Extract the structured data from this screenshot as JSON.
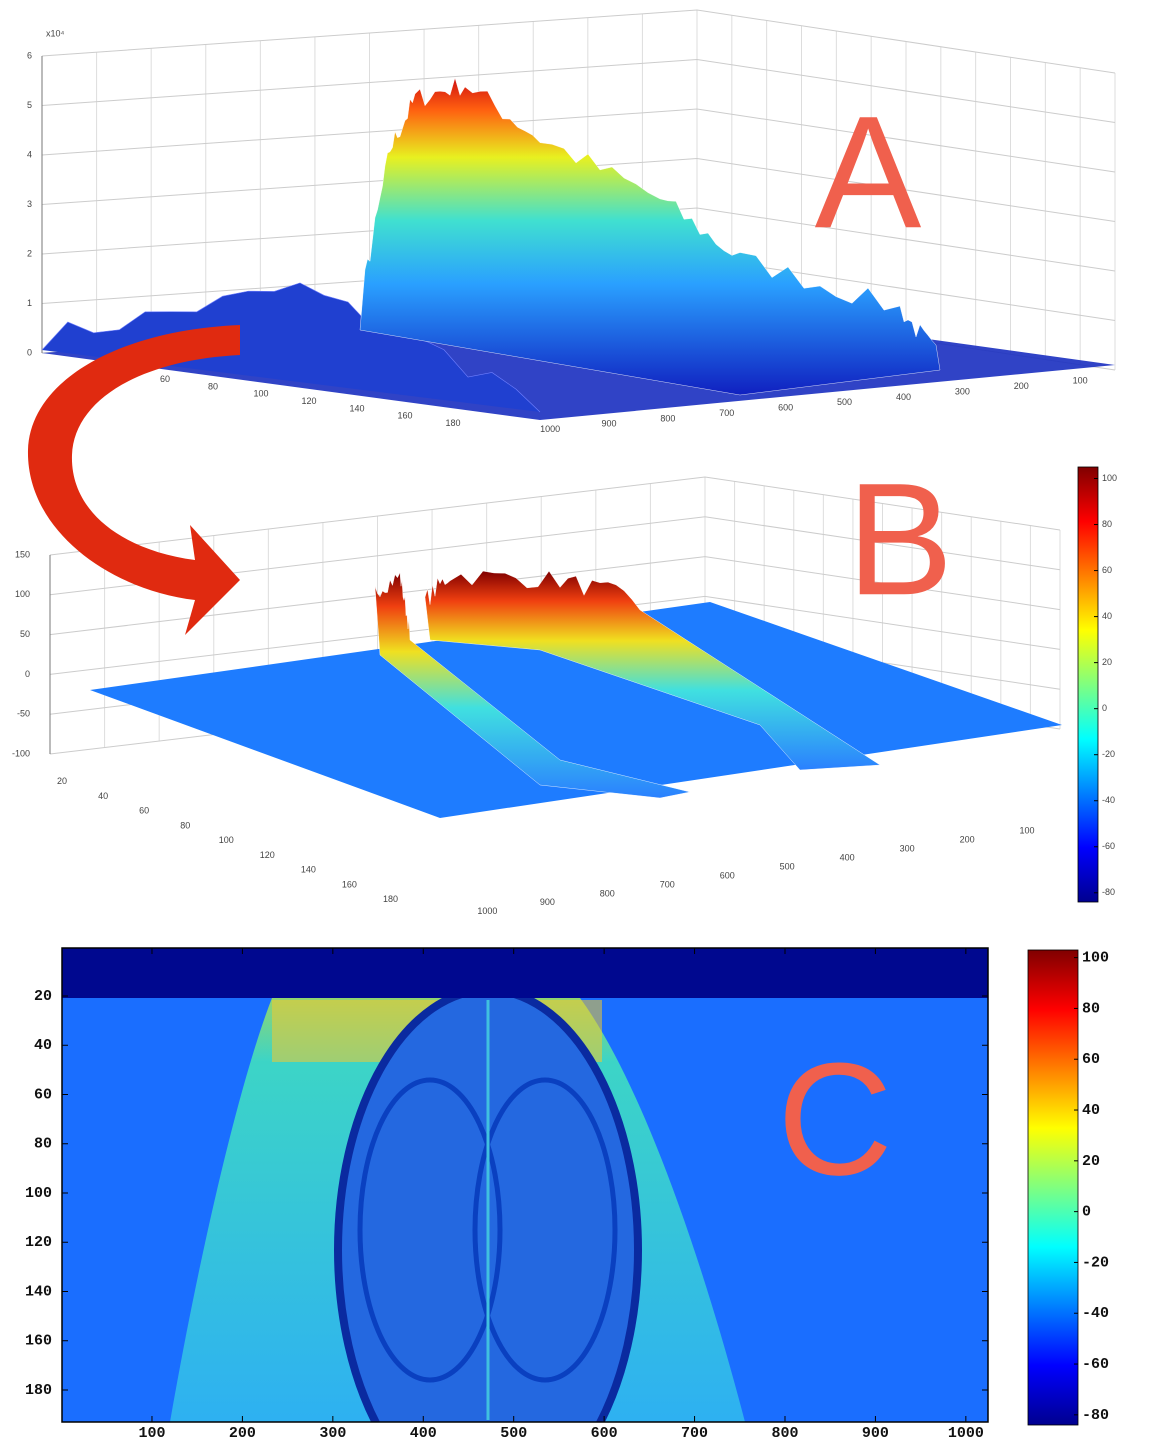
{
  "chart_data": [
    {
      "type": "surface3d",
      "annotation": "A",
      "z_multiplier_label": "x10⁴",
      "zlim": [
        0,
        6
      ],
      "zticks": [
        0,
        1,
        2,
        3,
        4,
        5,
        6
      ],
      "ylim": [
        20,
        200
      ],
      "yticks": [
        60,
        80,
        100,
        120,
        140,
        160,
        180
      ],
      "xlim": [
        0,
        1024
      ],
      "xticks": [
        1000,
        900,
        800,
        700,
        600,
        500,
        400,
        300,
        200,
        100
      ],
      "grid": true
    },
    {
      "type": "surface3d",
      "annotation": "B",
      "zlim": [
        -100,
        150
      ],
      "zticks": [
        -100,
        -50,
        0,
        50,
        100,
        150
      ],
      "ylim": [
        0,
        190
      ],
      "yticks": [
        20,
        40,
        60,
        80,
        100,
        120,
        140,
        160,
        180
      ],
      "xlim": [
        0,
        1024
      ],
      "xticks": [
        1000,
        900,
        800,
        700,
        600,
        500,
        400,
        300,
        200,
        100
      ],
      "grid": true,
      "colorbar": {
        "lim": [
          -84,
          105
        ],
        "ticks": [
          100,
          80,
          60,
          40,
          20,
          0,
          -20,
          -40,
          -60,
          -80
        ]
      }
    },
    {
      "type": "heatmap",
      "annotation": "C",
      "xlim": [
        0.5,
        1024.5
      ],
      "xticks": [
        100,
        200,
        300,
        400,
        500,
        600,
        700,
        800,
        900,
        1000
      ],
      "ylim": [
        0.5,
        193
      ],
      "yticks": [
        20,
        40,
        60,
        80,
        100,
        120,
        140,
        160,
        180
      ],
      "colorbar": {
        "lim": [
          -84,
          103
        ],
        "ticks": [
          100,
          80,
          60,
          40,
          20,
          0,
          -20,
          -40,
          -60,
          -80
        ]
      }
    }
  ]
}
